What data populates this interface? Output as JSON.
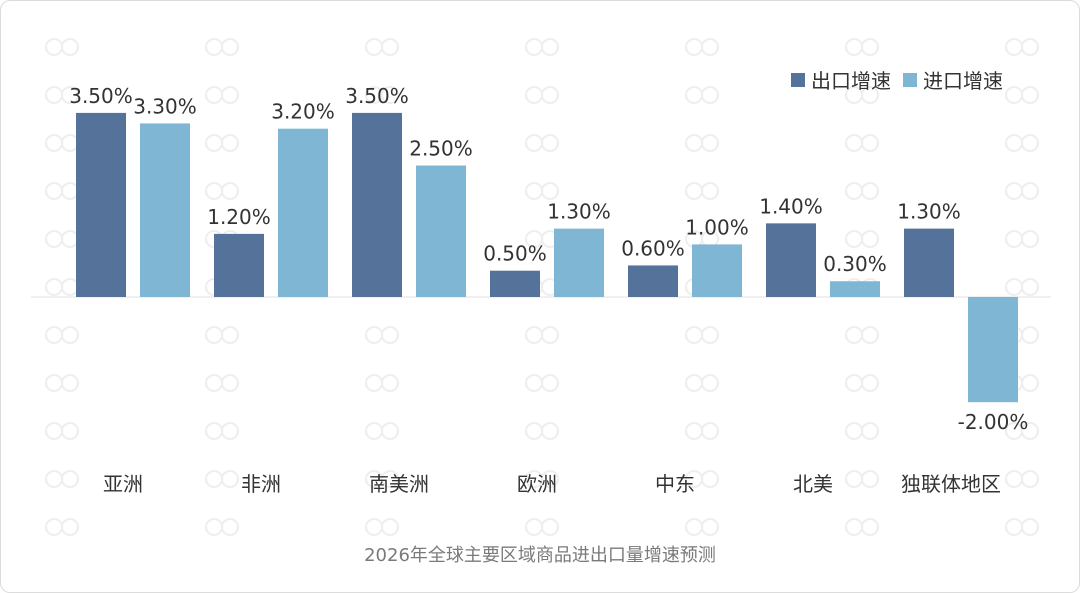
{
  "chart_data": {
    "type": "bar",
    "title": "2026年全球主要区域商品进出口量增速预测",
    "categories": [
      "亚洲",
      "非洲",
      "南美洲",
      "欧洲",
      "中东",
      "北美",
      "独联体地区"
    ],
    "series": [
      {
        "name": "出口增速",
        "color": "#55729a",
        "values": [
          3.5,
          1.2,
          3.5,
          0.5,
          0.6,
          1.4,
          1.3
        ],
        "labels": [
          "3.50%",
          "1.20%",
          "3.50%",
          "0.50%",
          "0.60%",
          "1.40%",
          "1.30%"
        ]
      },
      {
        "name": "进口增速",
        "color": "#7fb6d4",
        "values": [
          3.3,
          3.2,
          2.5,
          1.3,
          1.0,
          0.3,
          -2.0
        ],
        "labels": [
          "3.30%",
          "3.20%",
          "2.50%",
          "1.30%",
          "1.00%",
          "0.30%",
          "-2.00%"
        ]
      }
    ],
    "ylim": [
      -2.0,
      3.5
    ],
    "grid": false,
    "legend_position": "top-right"
  }
}
